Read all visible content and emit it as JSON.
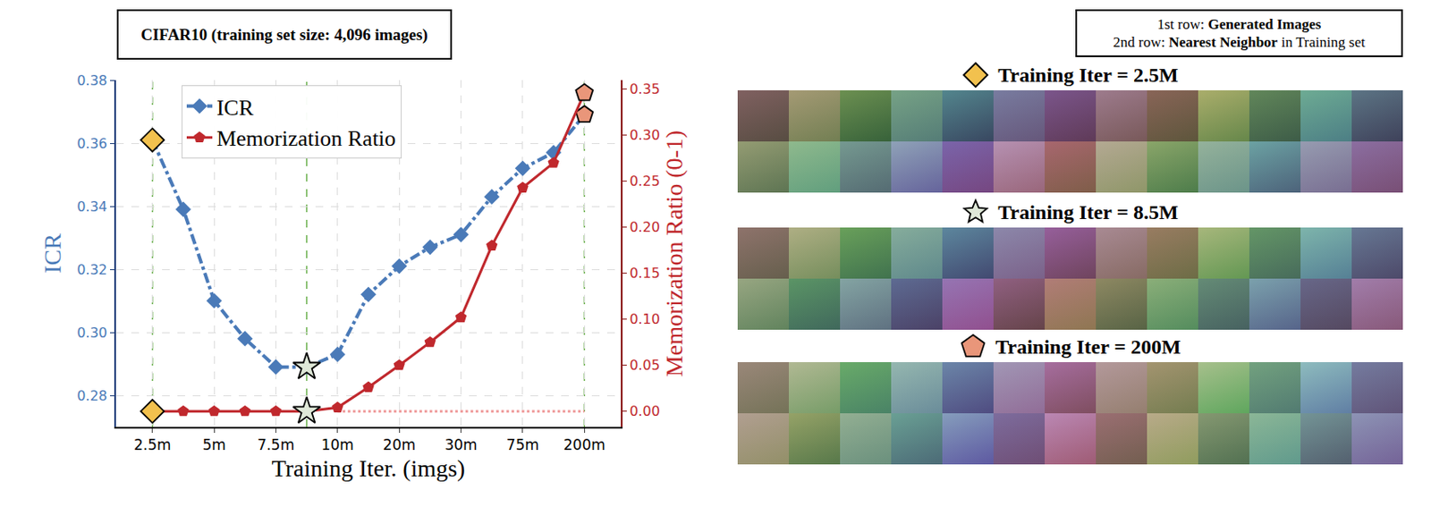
{
  "chart_data": {
    "type": "line",
    "title": "CIFAR10 (training set size: 4,096 images)",
    "categories": [
      "2.5m",
      null,
      "5m",
      null,
      "7.5m",
      null,
      "10m",
      null,
      "20m",
      null,
      "30m",
      null,
      "75m",
      null,
      "200m"
    ],
    "x_label": "Training Iter. (imgs)",
    "y_label": "ICR",
    "y2_label": "Memorization Ratio (0-1)",
    "series": [
      {
        "name": "ICR",
        "color": "#4a7ab8",
        "marker": "diamond",
        "line_style": "dashdot",
        "values": [
          0.361,
          0.339,
          0.31,
          0.298,
          0.289,
          0.289,
          0.293,
          0.312,
          0.321,
          0.327,
          0.331,
          0.343,
          0.352,
          0.357,
          0.369
        ]
      },
      {
        "name": "Memorization Ratio",
        "color": "#c0282d",
        "marker": "pentagon",
        "line_style": "solid",
        "axis": "y2",
        "values": [
          0,
          0,
          0,
          0,
          0,
          0,
          0.004,
          0.026,
          0.05,
          0.075,
          0.102,
          0.18,
          0.243,
          0.27,
          0.346
        ]
      }
    ],
    "ylim": [
      0.27,
      0.38
    ],
    "yticks": [
      0.28,
      {
        "value": 0.3,
        "label": "0.30"
      },
      0.32,
      0.34,
      0.36,
      0.38
    ],
    "y2lim": [
      -0.017,
      0.36
    ],
    "y2ticks": [
      {
        "value": 0,
        "label": "0.00"
      },
      0.05,
      {
        "value": 0.1,
        "label": "0.10"
      },
      0.15,
      {
        "value": 0.2,
        "label": "0.20"
      },
      0.25,
      {
        "value": 0.3,
        "label": "0.30"
      },
      0.35
    ],
    "grid": true,
    "legend": "top"
  },
  "image_grid": {
    "key": {
      "lines": [
        [
          {
            "text": "1st row:",
            "bold": false
          },
          {
            "text": "Generated Images",
            "bold": true
          }
        ],
        [
          {
            "text": "2nd row:",
            "bold": false
          },
          {
            "text": "Nearest Neighbor",
            "bold": true
          },
          {
            "text": "in Training set",
            "bold": false
          }
        ]
      ]
    },
    "panels": [
      {
        "title": "Training Iter = 2.5M",
        "marker": "diamond",
        "color": "#f2c14e",
        "at": 0
      },
      {
        "title": "Training Iter = 8.5M",
        "marker": "star",
        "color": "#dfe8d8",
        "at": 5
      },
      {
        "title": "Training Iter = 200M",
        "marker": "pentagon",
        "color": "#e9967a",
        "at": 14
      }
    ]
  }
}
